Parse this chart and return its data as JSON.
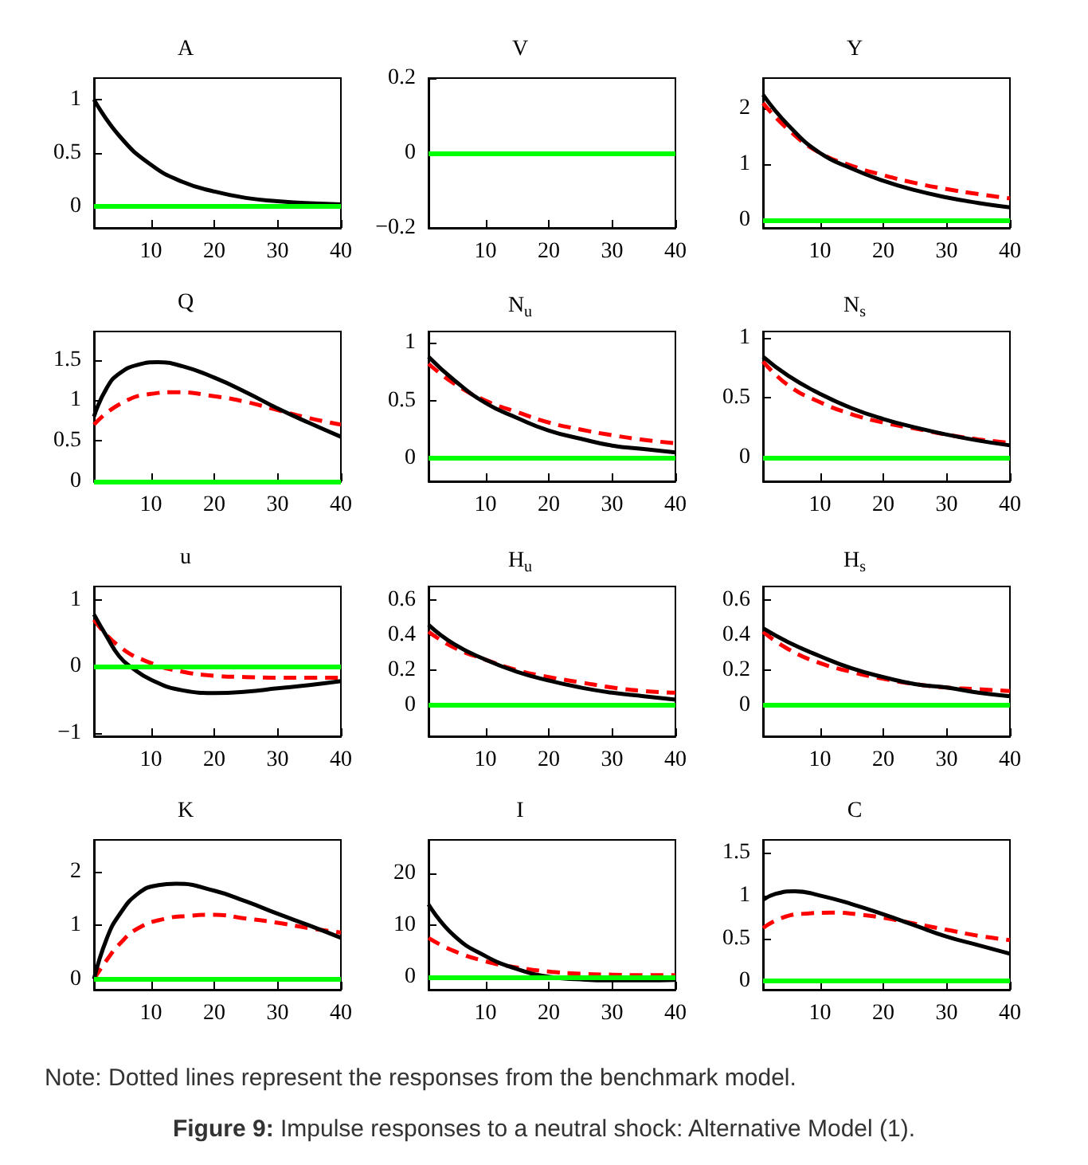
{
  "chart_data": [
    {
      "type": "line",
      "title": "A",
      "xlim": [
        1,
        40
      ],
      "xticks": [
        10,
        20,
        30,
        40
      ],
      "ylim": [
        -0.2,
        1.2
      ],
      "yticks": [
        0,
        0.5,
        1
      ],
      "grid": false,
      "marker": "none",
      "ref_lines": [
        {
          "axis": "y",
          "value": 0,
          "color": "#00ff00"
        }
      ],
      "series": [
        {
          "color": "#000000",
          "line_style": "solid",
          "x": [
            1,
            5,
            10,
            15,
            20,
            25,
            30,
            35,
            40
          ],
          "values": [
            1,
            0.66,
            0.39,
            0.23,
            0.14,
            0.08,
            0.05,
            0.03,
            0.02
          ]
        }
      ]
    },
    {
      "type": "line",
      "title": "V",
      "xlim": [
        1,
        40
      ],
      "xticks": [
        10,
        20,
        30,
        40
      ],
      "ylim": [
        -0.2,
        0.2
      ],
      "yticks": [
        {
          "value": -0.2,
          "label": "−0.2"
        },
        0,
        0.2
      ],
      "grid": false,
      "ref_lines": [
        {
          "axis": "y",
          "value": 0,
          "color": "#00ff00"
        }
      ]
    },
    {
      "type": "line",
      "title": "Y",
      "xlim": [
        1,
        40
      ],
      "xticks": [
        10,
        20,
        30,
        40
      ],
      "ylim": [
        -0.15,
        2.55
      ],
      "yticks": [
        0,
        1,
        2
      ],
      "grid": false,
      "marker": "none",
      "ref_lines": [
        {
          "axis": "y",
          "value": 0,
          "color": "#00ff00"
        }
      ],
      "series": [
        {
          "color": "#ff0000",
          "line_style": "dashed",
          "x": [
            1,
            5,
            10,
            15,
            20,
            25,
            30,
            35,
            40
          ],
          "values": [
            2.1,
            1.62,
            1.2,
            0.97,
            0.8,
            0.66,
            0.55,
            0.46,
            0.38
          ]
        },
        {
          "color": "#000000",
          "line_style": "solid",
          "x": [
            1,
            5,
            10,
            15,
            20,
            25,
            30,
            35,
            40
          ],
          "values": [
            2.25,
            1.7,
            1.2,
            0.92,
            0.7,
            0.53,
            0.4,
            0.3,
            0.22
          ]
        }
      ]
    },
    {
      "type": "line",
      "title": "Q",
      "xlim": [
        1,
        40
      ],
      "xticks": [
        10,
        20,
        30,
        40
      ],
      "ylim": [
        0,
        1.85
      ],
      "yticks": [
        0,
        0.5,
        1,
        1.5
      ],
      "grid": false,
      "marker": "none",
      "ref_lines": [
        {
          "axis": "y",
          "value": 0,
          "color": "#00ff00"
        }
      ],
      "series": [
        {
          "color": "#ff0000",
          "line_style": "dashed",
          "x": [
            1,
            5,
            10,
            14,
            20,
            25,
            30,
            35,
            40
          ],
          "values": [
            0.7,
            0.95,
            1.08,
            1.1,
            1.05,
            0.98,
            0.88,
            0.78,
            0.7
          ]
        },
        {
          "color": "#000000",
          "line_style": "solid",
          "x": [
            1,
            3,
            5,
            8,
            11,
            15,
            20,
            25,
            30,
            35,
            40
          ],
          "values": [
            0.8,
            1.15,
            1.33,
            1.44,
            1.47,
            1.42,
            1.28,
            1.1,
            0.9,
            0.72,
            0.55
          ]
        }
      ]
    },
    {
      "type": "line",
      "title": "N$_{u}$",
      "xlim": [
        1,
        40
      ],
      "xticks": [
        10,
        20,
        30,
        40
      ],
      "ylim": [
        -0.2,
        1.1
      ],
      "yticks": [
        0,
        0.5,
        1
      ],
      "grid": false,
      "marker": "none",
      "ref_lines": [
        {
          "axis": "y",
          "value": 0,
          "color": "#00ff00"
        }
      ],
      "series": [
        {
          "color": "#ff0000",
          "line_style": "dashed",
          "x": [
            1,
            5,
            10,
            15,
            20,
            25,
            30,
            35,
            40
          ],
          "values": [
            0.82,
            0.65,
            0.5,
            0.4,
            0.31,
            0.25,
            0.2,
            0.16,
            0.13
          ]
        },
        {
          "color": "#000000",
          "line_style": "solid",
          "x": [
            1,
            5,
            10,
            15,
            20,
            25,
            30,
            35,
            40
          ],
          "values": [
            0.88,
            0.68,
            0.48,
            0.35,
            0.24,
            0.17,
            0.11,
            0.08,
            0.05
          ]
        }
      ]
    },
    {
      "type": "line",
      "title": "N$_{s}$",
      "xlim": [
        1,
        40
      ],
      "xticks": [
        10,
        20,
        30,
        40
      ],
      "ylim": [
        -0.2,
        1.05
      ],
      "yticks": [
        0,
        0.5,
        1
      ],
      "grid": false,
      "marker": "none",
      "ref_lines": [
        {
          "axis": "y",
          "value": 0,
          "color": "#00ff00"
        }
      ],
      "series": [
        {
          "color": "#ff0000",
          "line_style": "dashed",
          "x": [
            1,
            5,
            10,
            15,
            20,
            25,
            30,
            35,
            40
          ],
          "values": [
            0.8,
            0.6,
            0.46,
            0.36,
            0.29,
            0.24,
            0.19,
            0.15,
            0.12
          ]
        },
        {
          "color": "#000000",
          "line_style": "solid",
          "x": [
            1,
            5,
            10,
            15,
            20,
            25,
            30,
            35,
            40
          ],
          "values": [
            0.84,
            0.68,
            0.53,
            0.41,
            0.32,
            0.25,
            0.19,
            0.14,
            0.1
          ]
        }
      ]
    },
    {
      "type": "line",
      "title": "u",
      "xlim": [
        1,
        40
      ],
      "xticks": [
        10,
        20,
        30,
        40
      ],
      "ylim": [
        -1.05,
        1.2
      ],
      "yticks": [
        {
          "value": -1,
          "label": "−1"
        },
        0,
        1
      ],
      "grid": false,
      "marker": "none",
      "ref_lines": [
        {
          "axis": "y",
          "value": 0,
          "color": "#00ff00"
        }
      ],
      "series": [
        {
          "color": "#ff0000",
          "line_style": "dashed",
          "x": [
            1,
            5,
            10,
            15,
            20,
            25,
            30,
            35,
            40
          ],
          "values": [
            0.7,
            0.3,
            0.05,
            -0.08,
            -0.14,
            -0.16,
            -0.17,
            -0.17,
            -0.17
          ]
        },
        {
          "color": "#000000",
          "line_style": "solid",
          "x": [
            1,
            3,
            5,
            7,
            10,
            15,
            20,
            25,
            30,
            35,
            40
          ],
          "values": [
            0.78,
            0.45,
            0.15,
            -0.02,
            -0.2,
            -0.36,
            -0.4,
            -0.38,
            -0.33,
            -0.28,
            -0.22
          ]
        }
      ]
    },
    {
      "type": "line",
      "title": "H$_{u}$",
      "xlim": [
        1,
        40
      ],
      "xticks": [
        10,
        20,
        30,
        40
      ],
      "ylim": [
        -0.18,
        0.68
      ],
      "yticks": [
        0,
        0.2,
        0.4,
        0.6
      ],
      "grid": false,
      "marker": "none",
      "ref_lines": [
        {
          "axis": "y",
          "value": 0,
          "color": "#00ff00"
        }
      ],
      "series": [
        {
          "color": "#ff0000",
          "line_style": "dashed",
          "x": [
            1,
            5,
            10,
            15,
            20,
            25,
            30,
            35,
            40
          ],
          "values": [
            0.42,
            0.33,
            0.26,
            0.2,
            0.16,
            0.13,
            0.1,
            0.08,
            0.07
          ]
        },
        {
          "color": "#000000",
          "line_style": "solid",
          "x": [
            1,
            5,
            10,
            15,
            20,
            25,
            30,
            35,
            40
          ],
          "values": [
            0.46,
            0.35,
            0.26,
            0.19,
            0.14,
            0.1,
            0.07,
            0.05,
            0.03
          ]
        }
      ]
    },
    {
      "type": "line",
      "title": "H$_{s}$",
      "xlim": [
        1,
        40
      ],
      "xticks": [
        10,
        20,
        30,
        40
      ],
      "ylim": [
        -0.18,
        0.68
      ],
      "yticks": [
        0,
        0.2,
        0.4,
        0.6
      ],
      "grid": false,
      "marker": "none",
      "ref_lines": [
        {
          "axis": "y",
          "value": 0,
          "color": "#00ff00"
        }
      ],
      "series": [
        {
          "color": "#ff0000",
          "line_style": "dashed",
          "x": [
            1,
            5,
            10,
            15,
            20,
            25,
            30,
            35,
            40
          ],
          "values": [
            0.42,
            0.32,
            0.24,
            0.19,
            0.15,
            0.12,
            0.1,
            0.09,
            0.08
          ]
        },
        {
          "color": "#000000",
          "line_style": "solid",
          "x": [
            1,
            5,
            10,
            15,
            20,
            25,
            30,
            35,
            40
          ],
          "values": [
            0.44,
            0.36,
            0.28,
            0.21,
            0.16,
            0.12,
            0.1,
            0.07,
            0.05
          ]
        }
      ]
    },
    {
      "type": "line",
      "title": "K",
      "xlim": [
        1,
        40
      ],
      "xticks": [
        10,
        20,
        30,
        40
      ],
      "ylim": [
        -0.2,
        2.6
      ],
      "yticks": [
        0,
        1,
        2
      ],
      "grid": false,
      "marker": "none",
      "ref_lines": [
        {
          "axis": "y",
          "value": 0,
          "color": "#00ff00"
        }
      ],
      "series": [
        {
          "color": "#ff0000",
          "line_style": "dashed",
          "x": [
            1,
            3,
            5,
            8,
            12,
            16,
            20,
            25,
            30,
            35,
            40
          ],
          "values": [
            0,
            0.35,
            0.65,
            0.95,
            1.12,
            1.18,
            1.2,
            1.13,
            1.05,
            0.95,
            0.87
          ]
        },
        {
          "color": "#000000",
          "line_style": "solid",
          "x": [
            1,
            3,
            5,
            8,
            11,
            14,
            20,
            25,
            30,
            35,
            40
          ],
          "values": [
            0,
            0.75,
            1.2,
            1.6,
            1.75,
            1.78,
            1.65,
            1.45,
            1.22,
            1.0,
            0.77
          ]
        }
      ]
    },
    {
      "type": "line",
      "title": "I",
      "xlim": [
        1,
        40
      ],
      "xticks": [
        10,
        20,
        30,
        40
      ],
      "ylim": [
        -2.5,
        26.5
      ],
      "yticks": [
        0,
        10,
        20
      ],
      "grid": false,
      "marker": "none",
      "ref_lines": [
        {
          "axis": "y",
          "value": 0,
          "color": "#00ff00"
        }
      ],
      "series": [
        {
          "color": "#ff0000",
          "line_style": "dashed",
          "x": [
            1,
            5,
            10,
            15,
            20,
            25,
            30,
            35,
            40
          ],
          "values": [
            7.5,
            5,
            3,
            1.8,
            1,
            0.6,
            0.4,
            0.3,
            0.3
          ]
        },
        {
          "color": "#000000",
          "line_style": "solid",
          "x": [
            1,
            5,
            10,
            15,
            20,
            25,
            30,
            35,
            40
          ],
          "values": [
            14,
            8,
            4,
            1.5,
            0,
            -0.5,
            -0.7,
            -0.7,
            -0.6
          ]
        }
      ]
    },
    {
      "type": "line",
      "title": "C",
      "xlim": [
        1,
        40
      ],
      "xticks": [
        10,
        20,
        30,
        40
      ],
      "ylim": [
        -0.1,
        1.65
      ],
      "yticks": [
        0,
        0.5,
        1,
        1.5
      ],
      "grid": false,
      "marker": "none",
      "ref_lines": [
        {
          "axis": "y",
          "value": 0,
          "color": "#00ff00"
        }
      ],
      "annotations": [
        "Note: Dotted lines represent the responses from the benchmark model.",
        "Figure 9: Impulse responses to a neutral shock: Alternative Model (1)."
      ],
      "series": [
        {
          "color": "#ff0000",
          "line_style": "dashed",
          "x": [
            1,
            4,
            8,
            12,
            16,
            20,
            25,
            30,
            35,
            40
          ],
          "values": [
            0.62,
            0.74,
            0.79,
            0.8,
            0.78,
            0.74,
            0.67,
            0.6,
            0.53,
            0.48
          ]
        },
        {
          "color": "#000000",
          "line_style": "solid",
          "x": [
            1,
            3,
            6,
            10,
            15,
            20,
            25,
            30,
            35,
            40
          ],
          "values": [
            0.95,
            1.02,
            1.05,
            1.0,
            0.9,
            0.78,
            0.65,
            0.52,
            0.42,
            0.32
          ]
        }
      ]
    }
  ]
}
